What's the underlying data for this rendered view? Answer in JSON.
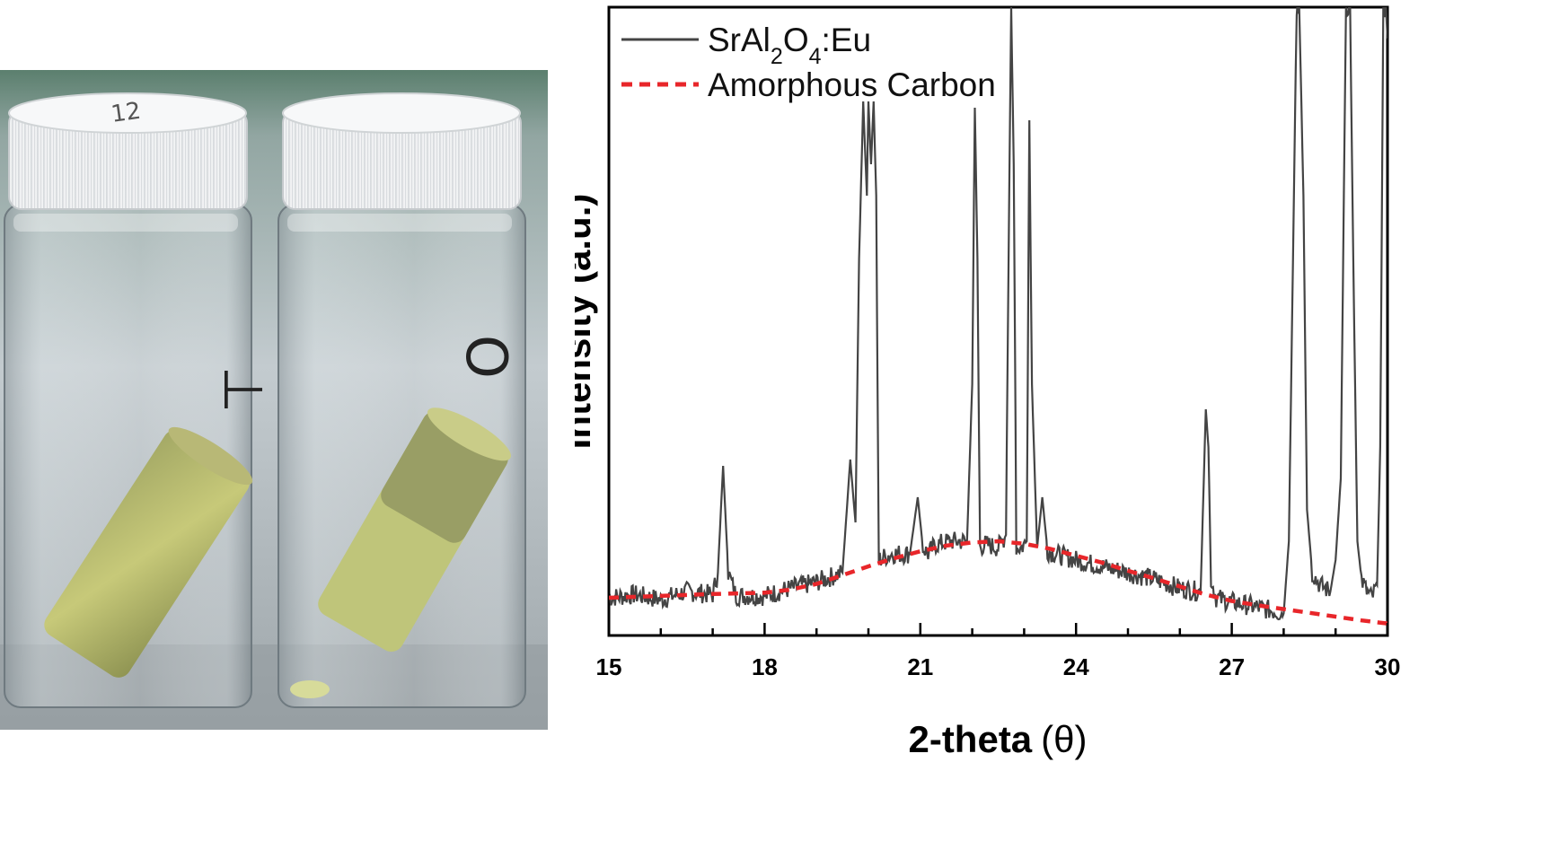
{
  "photo": {
    "vials": [
      {
        "cap_marking": "12",
        "side_marking": "⊥"
      },
      {
        "cap_marking": "",
        "side_marking": "O"
      }
    ]
  },
  "chart_data": {
    "type": "line",
    "xlabel_main": "2-theta",
    "xlabel_symbol": "(θ)",
    "ylabel": "Intensity (a.u.)",
    "xlim": [
      15,
      30
    ],
    "ylim": [
      0,
      100
    ],
    "xticks": [
      "15",
      "18",
      "21",
      "24",
      "27",
      "30"
    ],
    "x_minor_step": 1,
    "legend_position": "top-left",
    "series": [
      {
        "name": "SrAl2O4:Eu",
        "name_parts": [
          "SrAl",
          "2",
          "O",
          "4",
          ":Eu"
        ],
        "color": "#444444",
        "style": "solid",
        "x": [
          15.0,
          15.5,
          16.0,
          16.5,
          17.0,
          17.1,
          17.2,
          17.3,
          17.45,
          18.0,
          18.5,
          19.0,
          19.5,
          19.65,
          19.75,
          19.82,
          19.9,
          19.97,
          20.0,
          20.05,
          20.1,
          20.15,
          20.2,
          20.3,
          20.45,
          20.8,
          20.95,
          21.05,
          21.15,
          21.3,
          21.6,
          21.9,
          22.0,
          22.05,
          22.1,
          22.15,
          22.25,
          22.5,
          22.65,
          22.7,
          22.75,
          22.8,
          22.85,
          22.95,
          23.05,
          23.1,
          23.15,
          23.25,
          23.35,
          23.45,
          23.6,
          24.0,
          24.5,
          25.0,
          25.5,
          26.0,
          26.4,
          26.5,
          26.55,
          26.6,
          26.7,
          26.9,
          27.5,
          28.0,
          28.1,
          28.18,
          28.25,
          28.3,
          28.38,
          28.45,
          28.55,
          28.7,
          28.9,
          29.0,
          29.1,
          29.2,
          29.28,
          29.34,
          29.42,
          29.5,
          29.6,
          29.7,
          29.8,
          29.86,
          29.92,
          29.97,
          30.0
        ],
        "y": [
          6.0,
          6.5,
          5.7,
          7.0,
          6.5,
          10.0,
          27.0,
          10.0,
          6.3,
          6.3,
          7.5,
          8.5,
          10.0,
          28.0,
          18.0,
          60.0,
          85.0,
          70.0,
          85.0,
          75.0,
          85.0,
          70.0,
          12.0,
          12.5,
          13.0,
          13.0,
          22.0,
          14.0,
          13.0,
          14.5,
          15.0,
          15.0,
          40.0,
          84.0,
          60.0,
          14.0,
          14.5,
          14.0,
          16.0,
          60.0,
          100.0,
          75.0,
          14.0,
          14.0,
          15.0,
          82.0,
          40.0,
          14.0,
          22.0,
          13.5,
          13.0,
          12.0,
          11.0,
          10.0,
          9.0,
          7.5,
          7.0,
          36.0,
          30.0,
          9.0,
          6.0,
          5.5,
          4.5,
          3.5,
          15.0,
          60.0,
          100.0,
          100.0,
          70.0,
          20.0,
          10.0,
          8.0,
          7.0,
          12.0,
          25.0,
          100.0,
          100.0,
          60.0,
          15.0,
          9.0,
          7.0,
          6.0,
          8.0,
          30.0,
          100.0,
          100.0,
          95.0
        ]
      },
      {
        "name": "Amorphous Carbon",
        "color": "#e8262a",
        "style": "dashed",
        "x": [
          15.0,
          16.0,
          17.0,
          18.0,
          18.5,
          19.0,
          19.5,
          20.0,
          20.5,
          21.0,
          21.5,
          22.0,
          22.5,
          23.0,
          23.5,
          24.0,
          24.5,
          25.0,
          25.5,
          26.0,
          26.5,
          27.0,
          27.5,
          28.0,
          28.5,
          29.0,
          29.5,
          30.0
        ],
        "y": [
          6.0,
          6.3,
          6.6,
          6.8,
          7.3,
          8.2,
          9.6,
          11.0,
          12.3,
          13.4,
          14.3,
          14.8,
          15.0,
          14.6,
          13.8,
          12.7,
          11.6,
          10.3,
          9.1,
          7.8,
          6.5,
          5.5,
          4.8,
          4.2,
          3.6,
          3.0,
          2.4,
          1.9
        ]
      }
    ]
  }
}
